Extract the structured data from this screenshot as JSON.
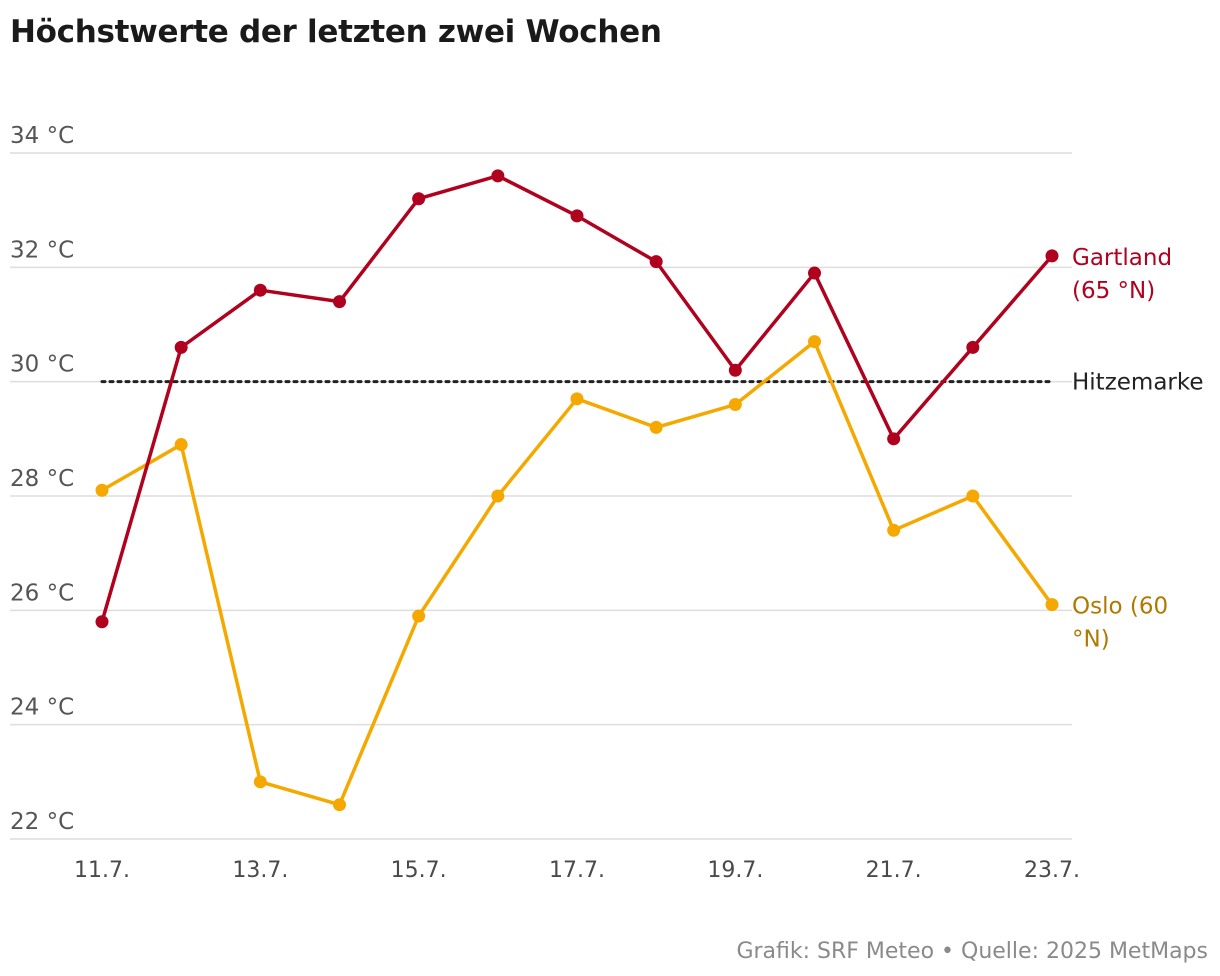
{
  "chart_data": {
    "type": "line",
    "title": "Höchstwerte der letzten zwei Wochen",
    "categories": [
      "11.7.",
      "12.7.",
      "13.7.",
      "14.7.",
      "15.7.",
      "16.7.",
      "17.7.",
      "18.7.",
      "19.7.",
      "20.7.",
      "21.7.",
      "22.7.",
      "23.7."
    ],
    "x_tick_labels": [
      "11.7.",
      "13.7.",
      "15.7.",
      "17.7.",
      "19.7.",
      "21.7.",
      "23.7."
    ],
    "y_ticks": [
      22,
      24,
      26,
      28,
      30,
      32,
      34
    ],
    "y_tick_labels": [
      "22 °C",
      "24 °C",
      "26 °C",
      "28 °C",
      "30 °C",
      "32 °C",
      "34 °C"
    ],
    "ylim": [
      22,
      34
    ],
    "grid": true,
    "series": [
      {
        "name": "Gartland (65 °N)",
        "label_lines": [
          "Gartland",
          "(65 °N)"
        ],
        "color": "#b0021f",
        "values": [
          25.8,
          30.6,
          31.6,
          31.4,
          33.2,
          33.6,
          32.9,
          32.1,
          30.2,
          31.9,
          29.0,
          30.6,
          32.2
        ]
      },
      {
        "name": "Oslo (60 °N)",
        "label_lines": [
          "Oslo (60",
          "°N)"
        ],
        "color": "#f5a800",
        "label_color": "#b07a00",
        "values": [
          28.1,
          28.9,
          23.0,
          22.6,
          25.9,
          28.0,
          29.7,
          29.2,
          29.6,
          30.7,
          27.4,
          28.0,
          26.1
        ]
      }
    ],
    "reference_line": {
      "label": "Hitzemarke",
      "value": 30,
      "color": "#222222"
    }
  },
  "footer": "Grafik: SRF Meteo • Quelle: 2025 MetMaps"
}
